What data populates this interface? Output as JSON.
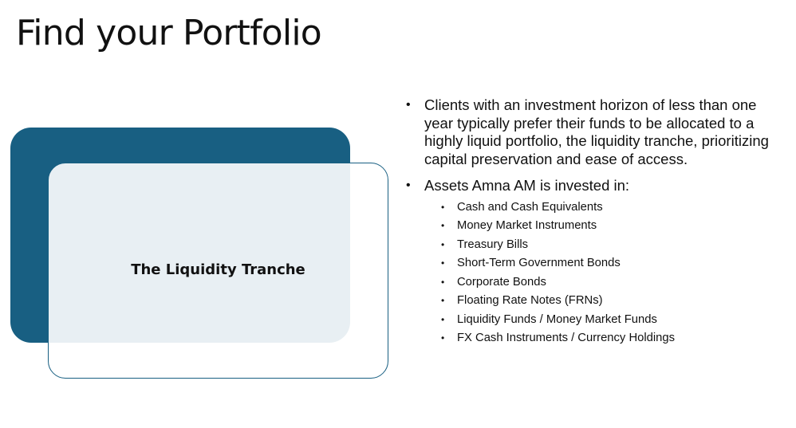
{
  "title": "Find your Portfolio",
  "card": {
    "label": "The Liquidity Tranche",
    "back_color": "#185f82",
    "border_color": "#185f82"
  },
  "bullets": [
    "Clients with an investment horizon of less than one year typically prefer their funds to be allocated to a highly liquid portfolio, the liquidity tranche, prioritizing capital preservation and ease of access.",
    "Assets Amna AM is invested in:"
  ],
  "bullet_symbol": "•",
  "assets": [
    "Cash and Cash Equivalents",
    "Money Market Instruments",
    "Treasury Bills",
    "Short-Term Government Bonds",
    "Corporate Bonds",
    "Floating Rate Notes (FRNs)",
    "Liquidity Funds / Money Market Funds",
    "FX Cash Instruments / Currency Holdings"
  ]
}
